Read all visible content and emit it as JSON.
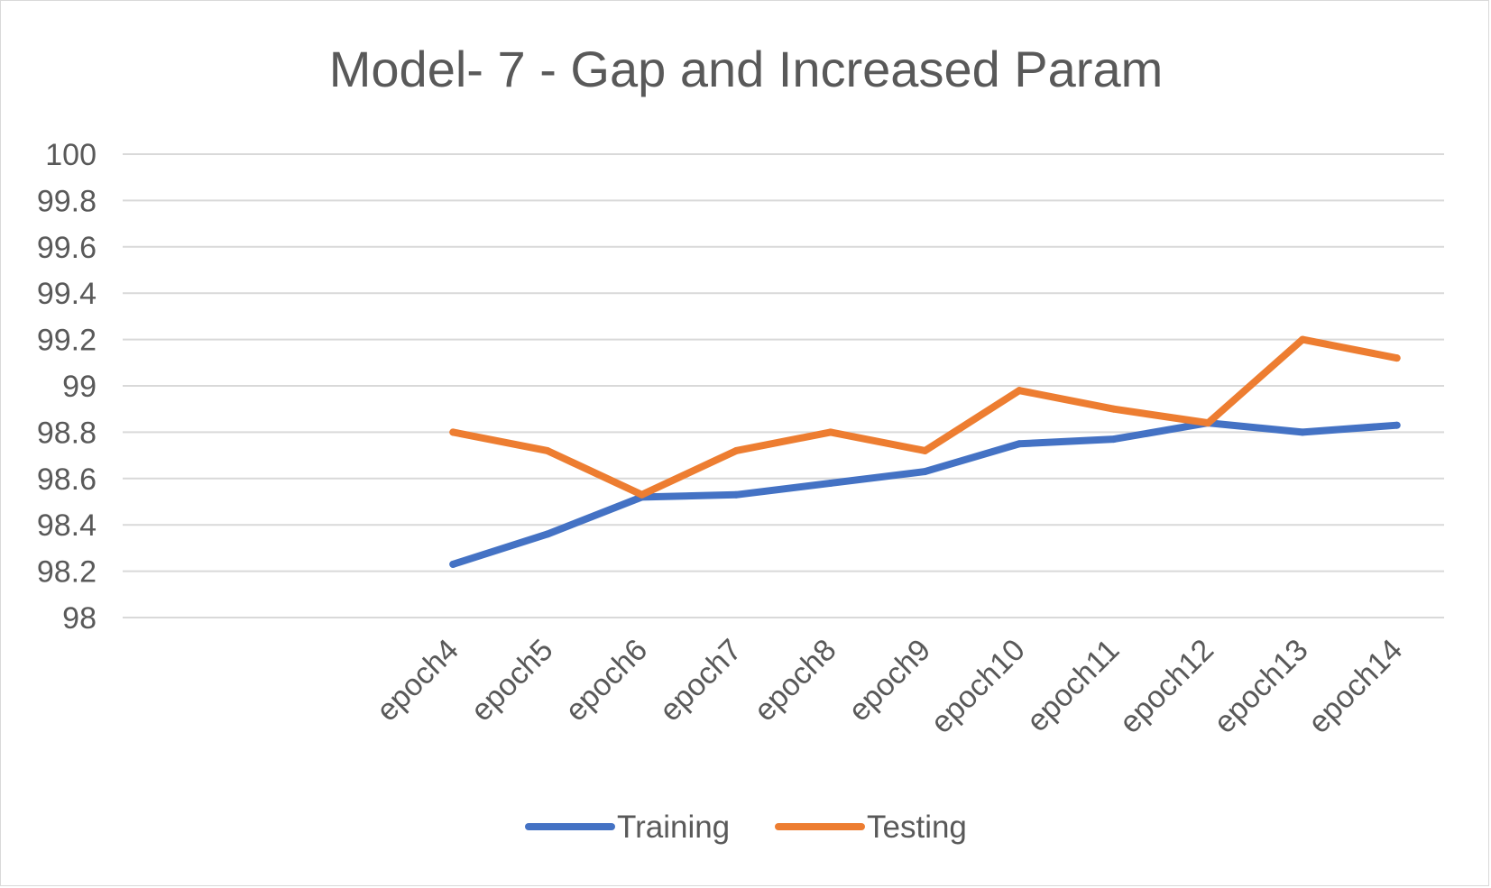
{
  "chart_data": {
    "type": "line",
    "title": "Model- 7 - Gap and Increased Param",
    "xlabel": "",
    "ylabel": "",
    "categories": [
      "",
      "",
      "",
      "epoch4",
      "epoch5",
      "epoch6",
      "epoch7",
      "epoch8",
      "epoch9",
      "epoch10",
      "epoch11",
      "epoch12",
      "epoch13",
      "epoch14"
    ],
    "ylim": [
      98,
      100
    ],
    "yticks": [
      "98",
      "98.2",
      "98.4",
      "98.6",
      "98.8",
      "99",
      "99.2",
      "99.4",
      "99.6",
      "99.8",
      "100"
    ],
    "grid": true,
    "legend_position": "bottom",
    "series": [
      {
        "name": "Training",
        "color": "#4472c4",
        "values": [
          null,
          null,
          null,
          98.23,
          98.36,
          98.52,
          98.53,
          98.58,
          98.63,
          98.75,
          98.77,
          98.84,
          98.8,
          98.83
        ]
      },
      {
        "name": "Testing",
        "color": "#ed7d31",
        "values": [
          null,
          null,
          null,
          98.8,
          98.72,
          98.53,
          98.72,
          98.8,
          98.72,
          98.98,
          98.9,
          98.84,
          99.2,
          99.12
        ]
      }
    ]
  }
}
